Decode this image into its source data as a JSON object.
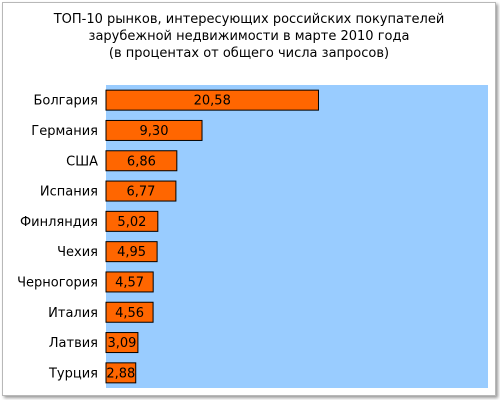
{
  "title_lines": [
    "ТОП-10 рынков, интересующих российских покупателей",
    "зарубежной недвижимости в марте 2010 года",
    "(в процентах от общего числа запросов)"
  ],
  "colors": {
    "plot_background": "#99ccff",
    "bar_fill": "#ff6600",
    "bar_stroke": "#000000",
    "text": "#000000"
  },
  "chart_data": {
    "type": "bar",
    "orientation": "horizontal",
    "title": "ТОП-10 рынков, интересующих российских покупателей зарубежной недвижимости в марте 2010 года (в процентах от общего числа запросов)",
    "categories": [
      "Болгария",
      "Германия",
      "США",
      "Испания",
      "Финляндия",
      "Чехия",
      "Черногория",
      "Италия",
      "Латвия",
      "Турция"
    ],
    "values": [
      20.58,
      9.3,
      6.86,
      6.77,
      5.02,
      4.95,
      4.57,
      4.56,
      3.09,
      2.88
    ],
    "value_labels": [
      "20,58",
      "9,30",
      "6,86",
      "6,77",
      "5,02",
      "4,95",
      "4,57",
      "4,56",
      "3,09",
      "2,88"
    ],
    "xlim": [
      0,
      37
    ],
    "grid": false,
    "legend": "none"
  }
}
